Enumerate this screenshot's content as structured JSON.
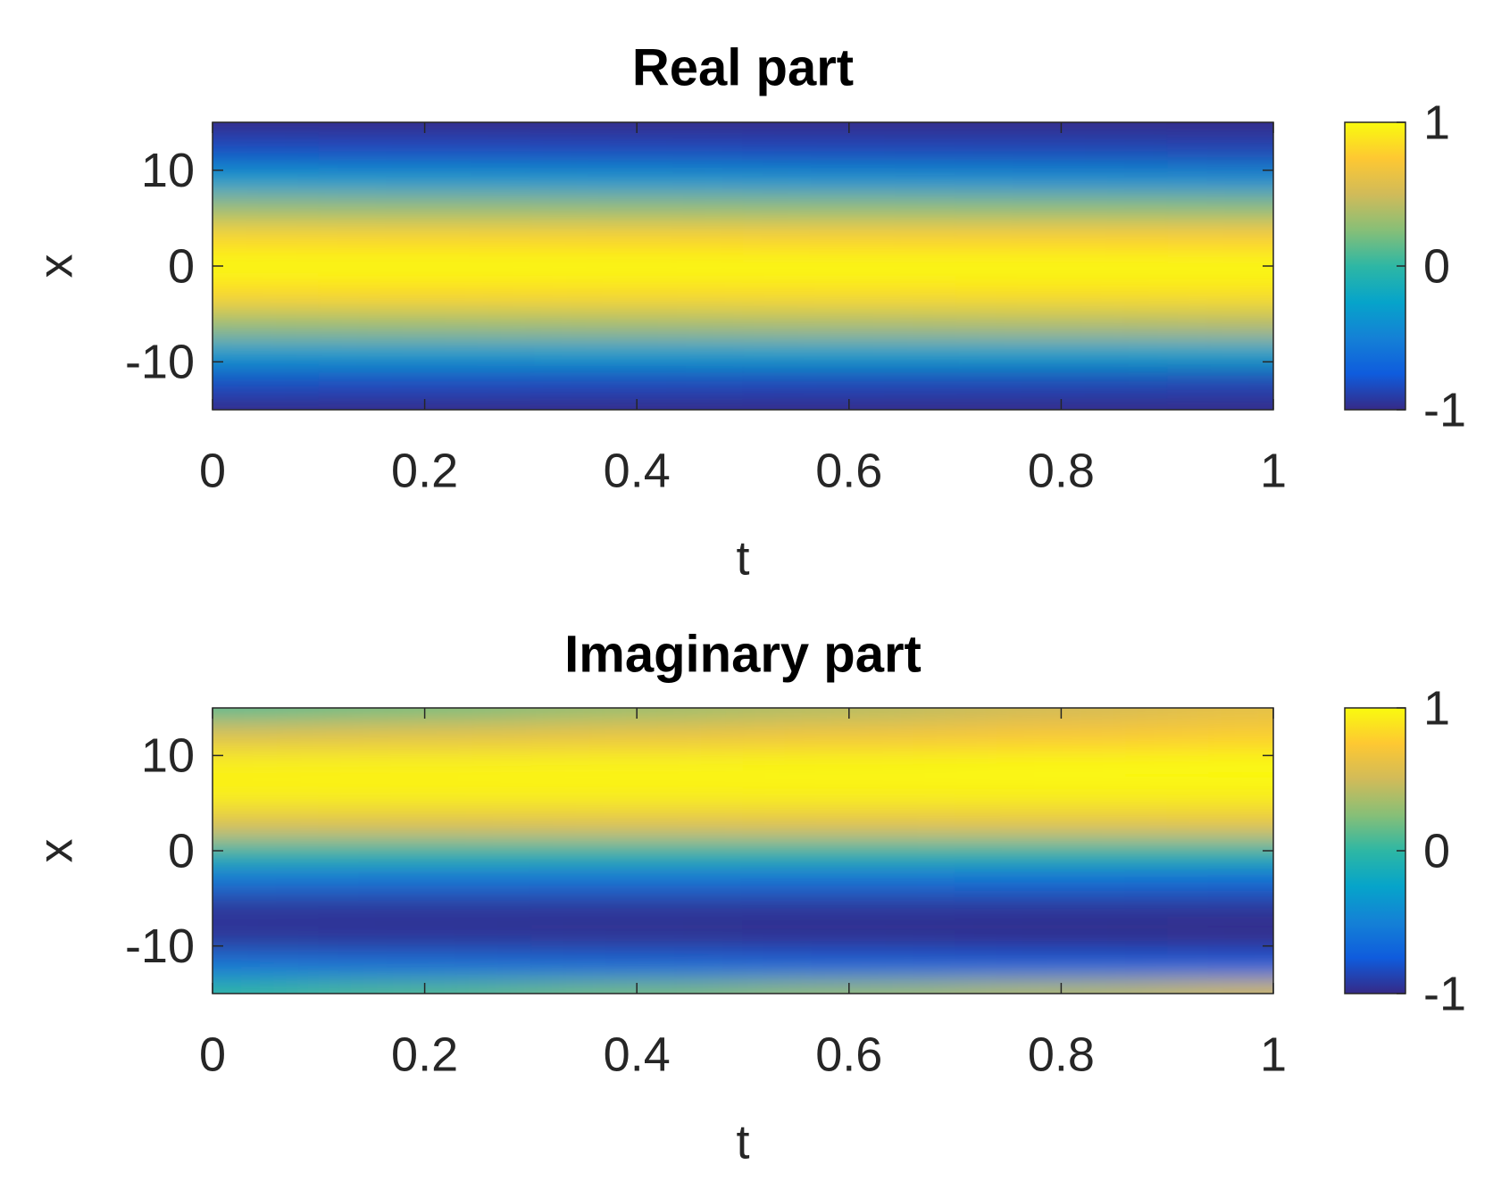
{
  "chart_data": [
    {
      "type": "heatmap",
      "title": "Real part",
      "xlabel": "t",
      "ylabel": "x",
      "x": [
        0,
        0.2,
        0.4,
        0.6,
        0.8,
        1
      ],
      "y": [
        -15,
        -12,
        -9,
        -6,
        -3,
        0,
        3,
        6,
        9,
        12,
        15
      ],
      "z": [
        [
          -1,
          -1,
          -1,
          -1,
          -1,
          -1
        ],
        [
          -0.81,
          -0.82,
          -0.83,
          -0.84,
          -0.85,
          -0.86
        ],
        [
          -0.31,
          -0.3,
          -0.29,
          -0.28,
          -0.27,
          -0.26
        ],
        [
          0.31,
          0.33,
          0.35,
          0.37,
          0.39,
          0.41
        ],
        [
          0.81,
          0.82,
          0.83,
          0.84,
          0.85,
          0.86
        ],
        [
          1,
          1,
          1,
          1,
          1,
          1
        ],
        [
          0.81,
          0.8,
          0.79,
          0.78,
          0.77,
          0.76
        ],
        [
          0.31,
          0.3,
          0.29,
          0.28,
          0.27,
          0.26
        ],
        [
          -0.31,
          -0.33,
          -0.35,
          -0.37,
          -0.39,
          -0.41
        ],
        [
          -0.81,
          -0.82,
          -0.83,
          -0.84,
          -0.85,
          -0.86
        ],
        [
          -1,
          -1,
          -1,
          -1,
          -1,
          -1
        ]
      ],
      "xlim": [
        0,
        1
      ],
      "xticks": [
        0,
        0.2,
        0.4,
        0.6,
        0.8,
        1
      ],
      "ylim": [
        -15,
        15
      ],
      "yticks": [
        -10,
        0,
        10
      ],
      "clim": [
        -1,
        1
      ],
      "cticks": [
        -1,
        0,
        1
      ],
      "colormap": [
        "#352a87",
        "#0f5cdd",
        "#1481d6",
        "#06a4ca",
        "#2eb7a4",
        "#87bf77",
        "#d1bb59",
        "#fec832",
        "#f9fb0e"
      ]
    },
    {
      "type": "heatmap",
      "title": "Imaginary part",
      "xlabel": "t",
      "ylabel": "x",
      "x": [
        0,
        0.2,
        0.4,
        0.6,
        0.8,
        1
      ],
      "y": [
        -15,
        -12,
        -9,
        -6,
        -3,
        0,
        3,
        6,
        9,
        12,
        15
      ],
      "z": [
        [
          0,
          0.1,
          0.2,
          0.3,
          0.4,
          0.5
        ],
        [
          -0.59,
          -0.62,
          -0.66,
          -0.7,
          -0.72,
          -0.74
        ],
        [
          -0.95,
          -0.96,
          -0.97,
          -0.98,
          -0.99,
          -1
        ],
        [
          -0.95,
          -0.95,
          -0.95,
          -0.95,
          -0.95,
          -0.95
        ],
        [
          -0.59,
          -0.6,
          -0.61,
          -0.62,
          -0.63,
          -0.64
        ],
        [
          0,
          0,
          0,
          0,
          0,
          0
        ],
        [
          0.59,
          0.6,
          0.61,
          0.62,
          0.63,
          0.64
        ],
        [
          0.95,
          0.95,
          0.95,
          0.95,
          0.95,
          0.95
        ],
        [
          0.95,
          0.96,
          0.97,
          0.98,
          0.99,
          1
        ],
        [
          0.59,
          0.62,
          0.66,
          0.7,
          0.74,
          0.78
        ],
        [
          0.1,
          0.2,
          0.3,
          0.4,
          0.5,
          0.6
        ]
      ],
      "xlim": [
        0,
        1
      ],
      "xticks": [
        0,
        0.2,
        0.4,
        0.6,
        0.8,
        1
      ],
      "ylim": [
        -15,
        15
      ],
      "yticks": [
        -10,
        0,
        10
      ],
      "clim": [
        -1,
        1
      ],
      "cticks": [
        -1,
        0,
        1
      ],
      "colormap": [
        "#352a87",
        "#0f5cdd",
        "#1481d6",
        "#06a4ca",
        "#2eb7a4",
        "#87bf77",
        "#d1bb59",
        "#fec832",
        "#f9fb0e"
      ]
    }
  ]
}
